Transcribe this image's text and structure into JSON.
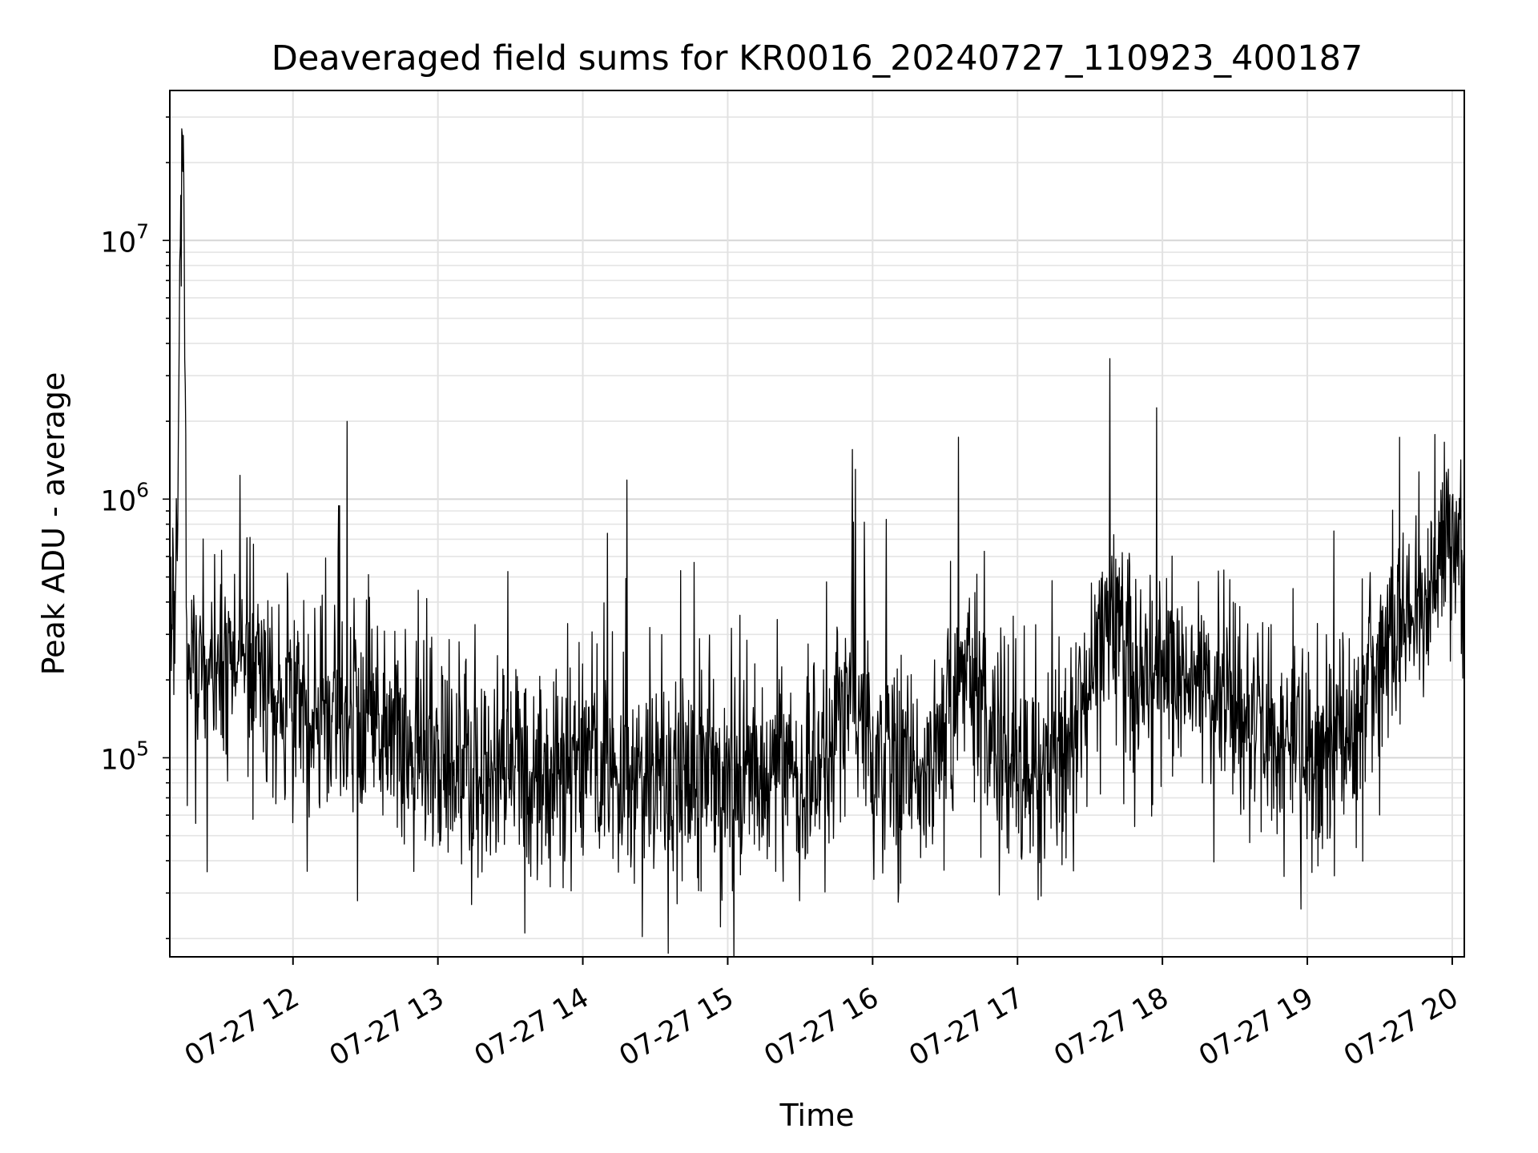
{
  "chart_data": {
    "type": "line",
    "title": "Deaveraged field sums for KR0016_20240727_110923_400187",
    "xlabel": "Time",
    "ylabel": "Peak ADU - average",
    "y_scale": "log",
    "ylim": [
      17000,
      38000000
    ],
    "x_range": [
      "07-27 11:09",
      "07-27 20:05"
    ],
    "x_tick_labels": [
      "07-27 12",
      "07-27 13",
      "07-27 14",
      "07-27 15",
      "07-27 16",
      "07-27 17",
      "07-27 18",
      "07-27 19",
      "07-27 20"
    ],
    "y_tick_labels": [
      {
        "base": "10",
        "exp": "5"
      },
      {
        "base": "10",
        "exp": "6"
      },
      {
        "base": "10",
        "exp": "7"
      }
    ],
    "grid": true,
    "line_color": "#000000",
    "series": [
      {
        "x": [
          "07-27 11:09",
          "07-27 11:12",
          "07-27 11:14",
          "07-27 11:15",
          "07-27 11:16",
          "07-27 11:20",
          "07-27 11:30",
          "07-27 11:40",
          "07-27 11:50",
          "07-27 12:00",
          "07-27 12:15",
          "07-27 12:30",
          "07-27 12:45",
          "07-27 13:00",
          "07-27 13:20",
          "07-27 13:40",
          "07-27 14:00",
          "07-27 14:15",
          "07-27 14:30",
          "07-27 14:45",
          "07-27 15:00",
          "07-27 15:20",
          "07-27 15:40",
          "07-27 15:50",
          "07-27 16:00",
          "07-27 16:20",
          "07-27 16:40",
          "07-27 17:00",
          "07-27 17:20",
          "07-27 17:35",
          "07-27 17:50",
          "07-27 18:05",
          "07-27 18:20",
          "07-27 18:35",
          "07-27 18:50",
          "07-27 19:05",
          "07-27 19:20",
          "07-27 19:35",
          "07-27 19:50",
          "07-27 20:00",
          "07-27 20:05"
        ],
        "y": [
          450000,
          500000,
          27000000,
          9500000,
          250000,
          220000,
          250000,
          230000,
          180000,
          160000,
          150000,
          140000,
          120000,
          100000,
          90000,
          85000,
          90000,
          80000,
          85000,
          90000,
          85000,
          80000,
          85000,
          200000,
          100000,
          95000,
          200000,
          90000,
          95000,
          300000,
          250000,
          200000,
          180000,
          130000,
          120000,
          100000,
          150000,
          300000,
          450000,
          700000,
          600000
        ]
      }
    ]
  }
}
